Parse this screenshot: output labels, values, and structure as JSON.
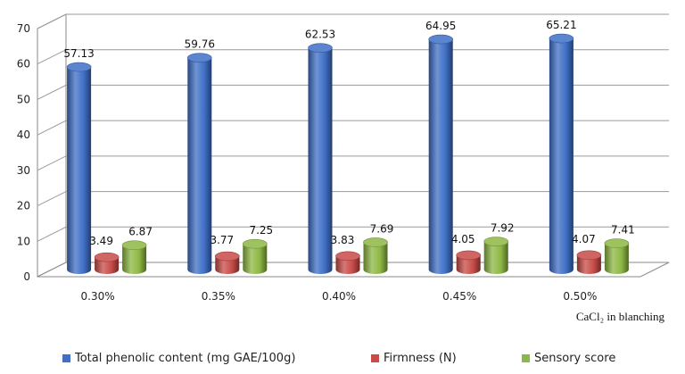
{
  "chart_data": {
    "type": "bar",
    "categories": [
      "0.30%",
      "0.35%",
      "0.40%",
      "0.45%",
      "0.50%"
    ],
    "xlabel": "CaCl₂ in blanching",
    "ylim": [
      0,
      70
    ],
    "yticks": [
      0,
      10,
      20,
      30,
      40,
      50,
      60,
      70
    ],
    "grid": true,
    "legend_position": "bottom",
    "series": [
      {
        "name": "Total phenolic content (mg GAE/100g)",
        "color": "#3F6FC6",
        "values": [
          57.13,
          59.76,
          62.53,
          64.95,
          65.21
        ],
        "labels": [
          "57.13",
          "59.76",
          "62.53",
          "64.95",
          "65.21"
        ]
      },
      {
        "name": "Firmness (N)",
        "color": "#C84B47",
        "values": [
          3.49,
          3.77,
          3.83,
          4.05,
          4.07
        ],
        "labels": [
          "3.49",
          "3.77",
          "3.83",
          "4.05",
          "4.07"
        ]
      },
      {
        "name": "Sensory score",
        "color": "#8DB743",
        "values": [
          6.87,
          7.25,
          7.69,
          7.92,
          7.41
        ],
        "labels": [
          "6.87",
          "7.25",
          "7.69",
          "7.92",
          "7.41"
        ]
      }
    ]
  }
}
